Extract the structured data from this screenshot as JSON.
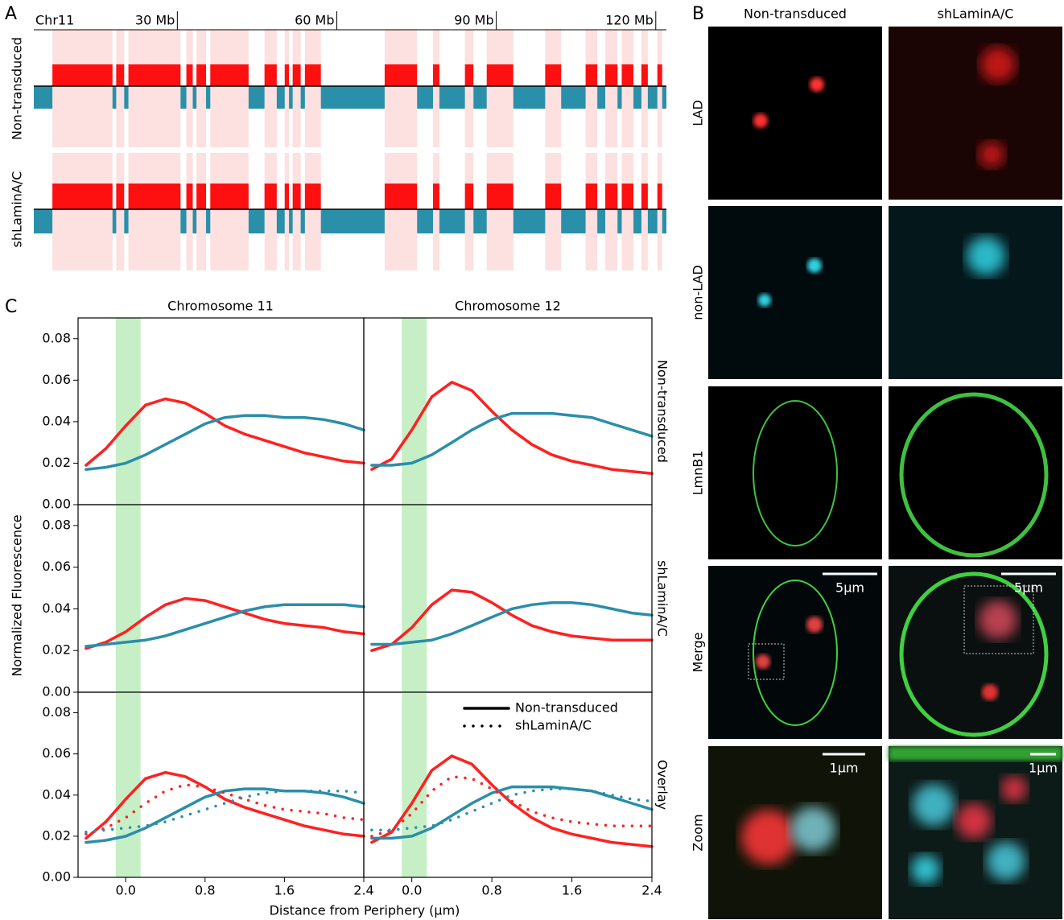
{
  "panel_labels": [
    "A",
    "B",
    "C"
  ],
  "panel_b": {
    "column_titles": [
      "Non-transduced",
      "shLaminA/C"
    ],
    "row_labels": [
      "LAD",
      "non-LAD",
      "LmnB1",
      "Merge",
      "Zoom"
    ],
    "scale_bars": [
      "5μm",
      "5μm",
      "1μm",
      "1μm"
    ]
  },
  "panel_c": {
    "column_titles": [
      "Chromosome 11",
      "Chromosome 12"
    ],
    "row_labels": [
      "Non-transduced",
      "shLaminA/C",
      "Overlay"
    ],
    "y_label": "Normalized Fluorescence",
    "x_label": "Distance from Periphery (μm)"
  },
  "chart_data": [
    {
      "type": "genome-track",
      "chromosome": "Chr11",
      "xlim": [
        3,
        122
      ],
      "xticks": [
        {
          "value": 30,
          "label": "30 Mb"
        },
        {
          "value": 60,
          "label": "60 Mb"
        },
        {
          "value": 90,
          "label": "90 Mb"
        },
        {
          "value": 120,
          "label": "120 Mb"
        }
      ],
      "row_labels": [
        "Non-transduced",
        "shLaminA/C"
      ],
      "lad_color": "#ff1010",
      "nonlad_color": "#2a90aa",
      "region_color": "#fde0e0",
      "lad_regions": [
        [
          6.5,
          17.8
        ],
        [
          18.5,
          20
        ],
        [
          20.8,
          30.6
        ],
        [
          31.7,
          32.9
        ],
        [
          33.6,
          35.4
        ],
        [
          36.2,
          43.4
        ],
        [
          46.4,
          48.7
        ],
        [
          50.2,
          51
        ],
        [
          51.7,
          53.2
        ],
        [
          54,
          57
        ],
        [
          69,
          75.1
        ],
        [
          78.1,
          79.3
        ],
        [
          84.1,
          85.7
        ],
        [
          88.2,
          93.2
        ],
        [
          99.2,
          102.2
        ],
        [
          106.8,
          109
        ],
        [
          110.5,
          112.8
        ],
        [
          113.6,
          115.8
        ],
        [
          117.3,
          118.5
        ],
        [
          120.3,
          121.2
        ]
      ]
    },
    {
      "type": "line",
      "xlim": [
        -0.48,
        2.4
      ],
      "ylim": [
        0,
        0.09
      ],
      "highlight": [
        -0.1,
        0.15
      ],
      "highlight_color": "#c6efc6",
      "yticks": [
        {
          "value": 0,
          "label": "0.00"
        },
        {
          "value": 0.02,
          "label": "0.02"
        },
        {
          "value": 0.04,
          "label": "0.04"
        },
        {
          "value": 0.06,
          "label": "0.06"
        },
        {
          "value": 0.08,
          "label": "0.08"
        }
      ],
      "x": [
        -0.4,
        -0.2,
        0,
        0.2,
        0.4,
        0.6,
        0.8,
        1.0,
        1.2,
        1.4,
        1.6,
        1.8,
        2.0,
        2.2,
        2.4
      ],
      "series": [
        {
          "color": "#ff2020",
          "style": "solid",
          "values": [
            0.019,
            0.027,
            0.038,
            0.048,
            0.051,
            0.049,
            0.044,
            0.038,
            0.034,
            0.031,
            0.028,
            0.025,
            0.023,
            0.021,
            0.02
          ]
        },
        {
          "color": "#2a8eaa",
          "style": "solid",
          "values": [
            0.017,
            0.018,
            0.02,
            0.024,
            0.029,
            0.034,
            0.039,
            0.042,
            0.043,
            0.043,
            0.042,
            0.042,
            0.041,
            0.039,
            0.036
          ]
        }
      ]
    },
    {
      "type": "line",
      "xlim": [
        -0.48,
        2.4
      ],
      "ylim": [
        0,
        0.09
      ],
      "highlight": [
        -0.1,
        0.15
      ],
      "highlight_color": "#c6efc6",
      "x": [
        -0.4,
        -0.2,
        0,
        0.2,
        0.4,
        0.6,
        0.8,
        1.0,
        1.2,
        1.4,
        1.6,
        1.8,
        2.0,
        2.2,
        2.4
      ],
      "series": [
        {
          "color": "#ff2020",
          "style": "solid",
          "values": [
            0.017,
            0.022,
            0.036,
            0.052,
            0.059,
            0.055,
            0.045,
            0.036,
            0.029,
            0.024,
            0.021,
            0.019,
            0.017,
            0.016,
            0.015
          ]
        },
        {
          "color": "#2a8eaa",
          "style": "solid",
          "values": [
            0.019,
            0.019,
            0.02,
            0.024,
            0.03,
            0.036,
            0.041,
            0.044,
            0.044,
            0.044,
            0.043,
            0.042,
            0.039,
            0.036,
            0.033
          ]
        }
      ]
    },
    {
      "type": "line",
      "xlim": [
        -0.48,
        2.4
      ],
      "ylim": [
        0,
        0.09
      ],
      "highlight": [
        -0.1,
        0.15
      ],
      "highlight_color": "#c6efc6",
      "yticks": [
        {
          "value": 0,
          "label": "0.00"
        },
        {
          "value": 0.02,
          "label": "0.02"
        },
        {
          "value": 0.04,
          "label": "0.04"
        },
        {
          "value": 0.06,
          "label": "0.06"
        },
        {
          "value": 0.08,
          "label": "0.08"
        }
      ],
      "x": [
        -0.4,
        -0.2,
        0,
        0.2,
        0.4,
        0.6,
        0.8,
        1.0,
        1.2,
        1.4,
        1.6,
        1.8,
        2.0,
        2.2,
        2.4
      ],
      "series": [
        {
          "color": "#ff2020",
          "style": "solid",
          "values": [
            0.021,
            0.024,
            0.029,
            0.036,
            0.042,
            0.045,
            0.044,
            0.041,
            0.038,
            0.035,
            0.033,
            0.032,
            0.031,
            0.029,
            0.028
          ]
        },
        {
          "color": "#2a8eaa",
          "style": "solid",
          "values": [
            0.022,
            0.023,
            0.024,
            0.025,
            0.027,
            0.03,
            0.033,
            0.036,
            0.039,
            0.041,
            0.042,
            0.042,
            0.042,
            0.042,
            0.041
          ]
        }
      ]
    },
    {
      "type": "line",
      "xlim": [
        -0.48,
        2.4
      ],
      "ylim": [
        0,
        0.09
      ],
      "highlight": [
        -0.1,
        0.15
      ],
      "highlight_color": "#c6efc6",
      "x": [
        -0.4,
        -0.2,
        0,
        0.2,
        0.4,
        0.6,
        0.8,
        1.0,
        1.2,
        1.4,
        1.6,
        1.8,
        2.0,
        2.2,
        2.4
      ],
      "series": [
        {
          "color": "#ff2020",
          "style": "solid",
          "values": [
            0.02,
            0.023,
            0.031,
            0.042,
            0.049,
            0.048,
            0.043,
            0.037,
            0.032,
            0.029,
            0.027,
            0.026,
            0.025,
            0.025,
            0.025
          ]
        },
        {
          "color": "#2a8eaa",
          "style": "solid",
          "values": [
            0.023,
            0.023,
            0.024,
            0.025,
            0.028,
            0.032,
            0.036,
            0.04,
            0.042,
            0.043,
            0.043,
            0.042,
            0.04,
            0.038,
            0.037
          ]
        }
      ]
    },
    {
      "type": "line",
      "xlim": [
        -0.48,
        2.4
      ],
      "ylim": [
        0,
        0.09
      ],
      "highlight": [
        -0.1,
        0.15
      ],
      "highlight_color": "#c6efc6",
      "yticks": [
        {
          "value": 0,
          "label": "0.00"
        },
        {
          "value": 0.02,
          "label": "0.02"
        },
        {
          "value": 0.04,
          "label": "0.04"
        },
        {
          "value": 0.06,
          "label": "0.06"
        },
        {
          "value": 0.08,
          "label": "0.08"
        }
      ],
      "xticks": [
        {
          "value": 0,
          "label": "0.0"
        },
        0.8,
        1.6,
        2.4
      ],
      "x": [
        -0.4,
        -0.2,
        0,
        0.2,
        0.4,
        0.6,
        0.8,
        1.0,
        1.2,
        1.4,
        1.6,
        1.8,
        2.0,
        2.2,
        2.4
      ],
      "series": [
        {
          "color": "#ff2020",
          "style": "solid",
          "values": [
            0.019,
            0.027,
            0.038,
            0.048,
            0.051,
            0.049,
            0.044,
            0.038,
            0.034,
            0.031,
            0.028,
            0.025,
            0.023,
            0.021,
            0.02
          ]
        },
        {
          "color": "#2a8eaa",
          "style": "solid",
          "values": [
            0.017,
            0.018,
            0.02,
            0.024,
            0.029,
            0.034,
            0.039,
            0.042,
            0.043,
            0.043,
            0.042,
            0.042,
            0.041,
            0.039,
            0.036
          ]
        },
        {
          "color": "#ff2020",
          "style": "dotted",
          "values": [
            0.021,
            0.024,
            0.029,
            0.036,
            0.042,
            0.045,
            0.044,
            0.041,
            0.038,
            0.035,
            0.033,
            0.032,
            0.031,
            0.029,
            0.028
          ]
        },
        {
          "color": "#2a8eaa",
          "style": "dotted",
          "values": [
            0.022,
            0.023,
            0.024,
            0.025,
            0.027,
            0.03,
            0.033,
            0.036,
            0.039,
            0.041,
            0.042,
            0.042,
            0.042,
            0.042,
            0.041
          ]
        }
      ]
    },
    {
      "type": "line",
      "xlim": [
        -0.48,
        2.4
      ],
      "ylim": [
        0,
        0.09
      ],
      "highlight": [
        -0.1,
        0.15
      ],
      "highlight_color": "#c6efc6",
      "xticks": [
        {
          "value": 0,
          "label": "0.0"
        },
        0.8,
        1.6,
        2.4
      ],
      "legend": [
        {
          "label": "Non-transduced",
          "style": "solid"
        },
        {
          "label": "shLaminA/C",
          "style": "dotted"
        }
      ],
      "x": [
        -0.4,
        -0.2,
        0,
        0.2,
        0.4,
        0.6,
        0.8,
        1.0,
        1.2,
        1.4,
        1.6,
        1.8,
        2.0,
        2.2,
        2.4
      ],
      "series": [
        {
          "color": "#ff2020",
          "style": "solid",
          "values": [
            0.017,
            0.022,
            0.036,
            0.052,
            0.059,
            0.055,
            0.045,
            0.036,
            0.029,
            0.024,
            0.021,
            0.019,
            0.017,
            0.016,
            0.015
          ]
        },
        {
          "color": "#2a8eaa",
          "style": "solid",
          "values": [
            0.019,
            0.019,
            0.02,
            0.024,
            0.03,
            0.036,
            0.041,
            0.044,
            0.044,
            0.044,
            0.043,
            0.042,
            0.039,
            0.036,
            0.033
          ]
        },
        {
          "color": "#ff2020",
          "style": "dotted",
          "values": [
            0.02,
            0.023,
            0.031,
            0.042,
            0.049,
            0.048,
            0.043,
            0.037,
            0.032,
            0.029,
            0.027,
            0.026,
            0.025,
            0.025,
            0.025
          ]
        },
        {
          "color": "#2a8eaa",
          "style": "dotted",
          "values": [
            0.023,
            0.023,
            0.024,
            0.025,
            0.028,
            0.032,
            0.036,
            0.04,
            0.042,
            0.043,
            0.043,
            0.042,
            0.04,
            0.038,
            0.037
          ]
        }
      ]
    }
  ]
}
